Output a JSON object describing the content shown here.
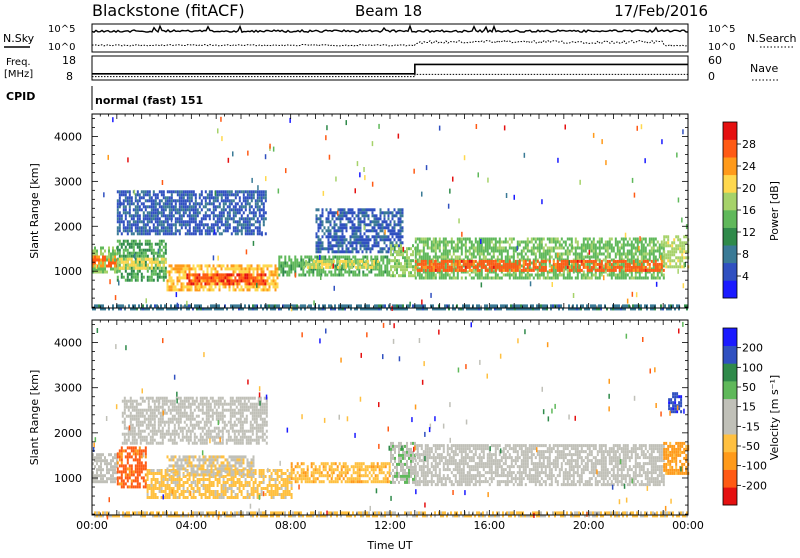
{
  "header": {
    "station": "Blackstone (fitACF)",
    "beam": "Beam 18",
    "date": "17/Feb/2016"
  },
  "top_panels": {
    "nsky_label": "N.Sky",
    "nsearch_label": "N.Search",
    "noise_ticks": [
      "10^5",
      "10^0"
    ],
    "freq_label": "Freq.",
    "freq_unit": "[MHz]",
    "freq_ticks": [
      "18",
      "8"
    ],
    "nave_label": "Nave",
    "nave_ticks": [
      "60",
      "0"
    ],
    "cpid_label": "CPID",
    "cpid_value": "normal (fast) 151",
    "frequency_mhz": [
      {
        "from_ut": 0,
        "value": 10.6
      },
      {
        "from_ut": 13.0,
        "value": 15.3
      }
    ],
    "nave": [
      {
        "from_ut": 0,
        "value": 7
      },
      {
        "from_ut": 13.0,
        "value": 14
      }
    ]
  },
  "chart_data": [
    {
      "type": "heatmap",
      "name": "power",
      "xlabel": "Time UT",
      "ylabel": "Slant Range [km]",
      "x_ticks": [
        "00:00",
        "04:00",
        "08:00",
        "12:00",
        "16:00",
        "20:00",
        "00:00"
      ],
      "x_range_hours": [
        0,
        24
      ],
      "y_ticks": [
        1000,
        2000,
        3000,
        4000
      ],
      "y_range_km": [
        180,
        4500
      ],
      "colorbar": {
        "label": "Power [dB]",
        "ticks": [
          "28",
          "24",
          "20",
          "16",
          "12",
          "8",
          "4"
        ],
        "range": [
          0,
          32
        ],
        "colors": [
          "#1a1aff",
          "#3050c0",
          "#3a7a96",
          "#2f8a4a",
          "#5fb85a",
          "#a6d26a",
          "#ffd84d",
          "#ff9a1a",
          "#ff5a14",
          "#e51010"
        ]
      },
      "bands": [
        {
          "t0": 0.0,
          "t1": 1.0,
          "r0": 950,
          "r1": 1550,
          "power": 16
        },
        {
          "t0": 0.0,
          "t1": 1.0,
          "r0": 1100,
          "r1": 1350,
          "power": 26
        },
        {
          "t0": 1.0,
          "t1": 3.0,
          "r0": 800,
          "r1": 1700,
          "power": 13
        },
        {
          "t0": 1.0,
          "t1": 3.0,
          "r0": 1050,
          "r1": 1300,
          "power": 20
        },
        {
          "t0": 1.0,
          "t1": 7.0,
          "r0": 1800,
          "r1": 2800,
          "power": 6
        },
        {
          "t0": 3.0,
          "t1": 7.5,
          "r0": 600,
          "r1": 1150,
          "power": 22
        },
        {
          "t0": 3.8,
          "t1": 7.0,
          "r0": 700,
          "r1": 950,
          "power": 28
        },
        {
          "t0": 7.5,
          "t1": 12.0,
          "r0": 900,
          "r1": 1350,
          "power": 14
        },
        {
          "t0": 8.5,
          "t1": 11.5,
          "r0": 1050,
          "r1": 1250,
          "power": 19
        },
        {
          "t0": 9.0,
          "t1": 12.5,
          "r0": 1400,
          "r1": 2400,
          "power": 6
        },
        {
          "t0": 12.0,
          "t1": 13.0,
          "r0": 900,
          "r1": 1600,
          "power": 17
        },
        {
          "t0": 13.0,
          "t1": 23.0,
          "r0": 850,
          "r1": 1750,
          "power": 15
        },
        {
          "t0": 13.0,
          "t1": 23.0,
          "r0": 1000,
          "r1": 1250,
          "power": 27
        },
        {
          "t0": 23.0,
          "t1": 24.0,
          "r0": 1100,
          "r1": 1800,
          "power": 18
        },
        {
          "t0": 0.0,
          "t1": 24.0,
          "r0": 180,
          "r1": 260,
          "power": 8
        }
      ]
    },
    {
      "type": "heatmap",
      "name": "velocity",
      "xlabel": "Time UT",
      "ylabel": "Slant Range [km]",
      "x_ticks": [
        "00:00",
        "04:00",
        "08:00",
        "12:00",
        "16:00",
        "20:00",
        "00:00"
      ],
      "x_range_hours": [
        0,
        24
      ],
      "y_ticks": [
        1000,
        2000,
        3000,
        4000
      ],
      "y_range_km": [
        180,
        4500
      ],
      "colorbar": {
        "label": "Velocity [m s⁻¹]",
        "ticks": [
          "200",
          "100",
          "50",
          "15",
          "-15",
          "-50",
          "-100",
          "-200"
        ],
        "range": [
          -250,
          250
        ],
        "colors": [
          "#e51010",
          "#ff5a14",
          "#ff9a1a",
          "#ffc040",
          "#c0c0b8",
          "#c0c0b8",
          "#5fb85a",
          "#2f8a4a",
          "#3050c0",
          "#1a1aff"
        ]
      },
      "bands": [
        {
          "t0": 0.0,
          "t1": 1.0,
          "r0": 950,
          "r1": 1550,
          "vel": 0
        },
        {
          "t0": 1.0,
          "t1": 2.2,
          "r0": 800,
          "r1": 1700,
          "vel": -170
        },
        {
          "t0": 2.2,
          "t1": 8.0,
          "r0": 600,
          "r1": 1200,
          "vel": -70
        },
        {
          "t0": 3.0,
          "t1": 6.5,
          "r0": 1100,
          "r1": 1500,
          "vel": -40
        },
        {
          "t0": 1.2,
          "t1": 7.0,
          "r0": 1800,
          "r1": 2800,
          "vel": 0
        },
        {
          "t0": 8.0,
          "t1": 12.0,
          "r0": 900,
          "r1": 1350,
          "vel": -80
        },
        {
          "t0": 12.0,
          "t1": 13.0,
          "r0": 900,
          "r1": 1800,
          "vel": 40
        },
        {
          "t0": 13.0,
          "t1": 23.0,
          "r0": 850,
          "r1": 1750,
          "vel": 0
        },
        {
          "t0": 23.0,
          "t1": 24.0,
          "r0": 1100,
          "r1": 1800,
          "vel": -120
        },
        {
          "t0": 23.2,
          "t1": 23.7,
          "r0": 2500,
          "r1": 2900,
          "vel": 180
        },
        {
          "t0": 0.0,
          "t1": 24.0,
          "r0": 180,
          "r1": 260,
          "vel": -60
        }
      ]
    }
  ]
}
